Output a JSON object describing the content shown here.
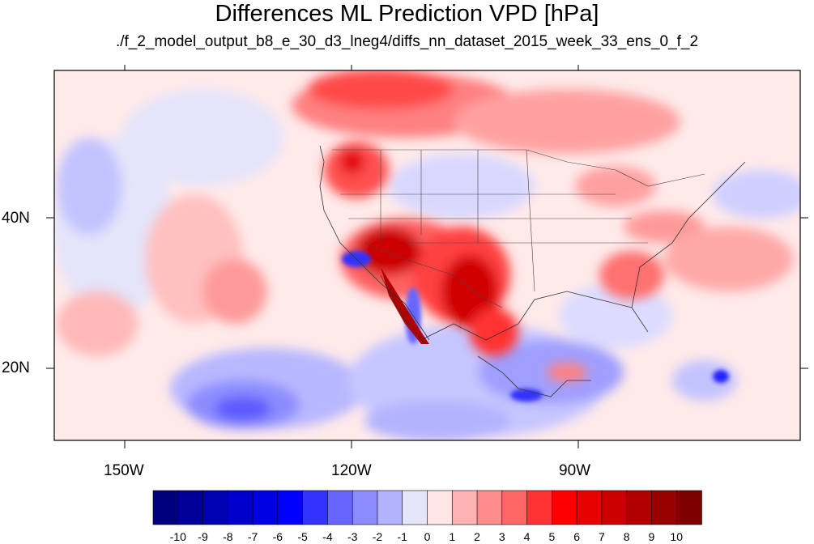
{
  "title": "Differences ML Prediction VPD [hPa]",
  "subtitle": "./f_2_model_output_b8_e_30_d3_lneg4/diffs_nn_dataset_2015_week_33_ens_0_f_2",
  "lat_labels": [
    "40N",
    "20N"
  ],
  "lon_labels": [
    "150W",
    "120W",
    "90W"
  ],
  "colorbar": {
    "labels": [
      "-10",
      "-9",
      "-8",
      "-7",
      "-6",
      "-5",
      "-4",
      "-3",
      "-2",
      "-1",
      "0",
      "1",
      "2",
      "3",
      "4",
      "5",
      "6",
      "7",
      "8",
      "9",
      "10"
    ],
    "colors": [
      "#00007f",
      "#000099",
      "#0000b2",
      "#0000cc",
      "#0000e5",
      "#0000ff",
      "#3333ff",
      "#6666ff",
      "#8c8cff",
      "#b2b2ff",
      "#e6e6fa",
      "#ffe6e6",
      "#ffb2b2",
      "#ff8c8c",
      "#ff6666",
      "#ff3333",
      "#ff0000",
      "#e60000",
      "#cc0000",
      "#b20000",
      "#990000",
      "#7f0000"
    ]
  },
  "map_extent": {
    "lon_min": -160,
    "lon_max": -60,
    "lat_min": 10,
    "lat_max": 59
  },
  "features": {
    "warm_anomalies": [
      "Pacific Northwest / western Canada",
      "US Southwest and northern Mexico",
      "Southeastern US",
      "Eastern Canada",
      "Central Pacific"
    ],
    "cold_anomalies": [
      "Eastern Pacific off Mexico",
      "Baja California coast",
      "Gulf of Mexico and Caribbean",
      "Northeast Pacific"
    ]
  }
}
